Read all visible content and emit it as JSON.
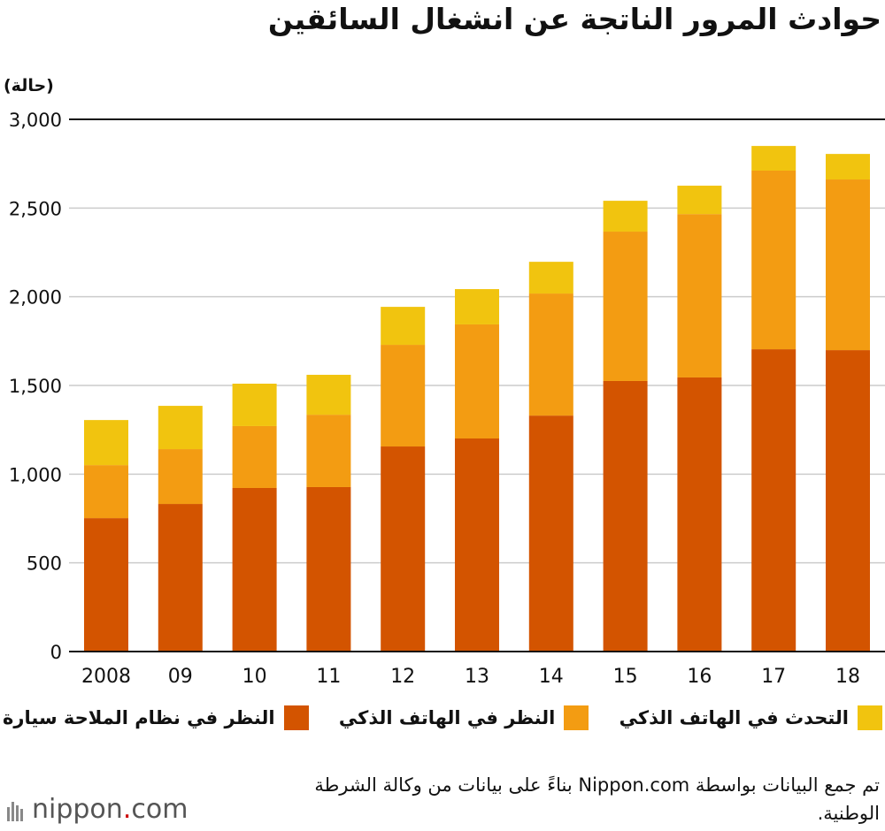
{
  "chart_data": {
    "type": "bar",
    "stacked": true,
    "title": "حوادث المرور الناتجة عن انشغال السائقين",
    "ylabel": "(حالة)",
    "xlabel": "",
    "ylim": [
      0,
      3000
    ],
    "yticks": [
      0,
      500,
      1000,
      1500,
      2000,
      2500,
      3000
    ],
    "ytick_labels": [
      "0",
      "500",
      "1,000",
      "1,500",
      "2,000",
      "2,500",
      "3,000"
    ],
    "categories": [
      "2008",
      "09",
      "10",
      "11",
      "12",
      "13",
      "14",
      "15",
      "16",
      "17",
      "18"
    ],
    "series": [
      {
        "name": "النظر في نظام الملاحة سيارة",
        "color": "#d35400",
        "values": [
          752,
          832,
          922,
          927,
          1156,
          1201,
          1330,
          1525,
          1545,
          1704,
          1699
        ]
      },
      {
        "name": "النظر في الهاتف الذكي",
        "color": "#f39c12",
        "values": [
          299,
          309,
          349,
          408,
          573,
          643,
          688,
          842,
          921,
          1007,
          962
        ]
      },
      {
        "name": "التحدث في الهاتف الذكي",
        "color": "#f1c40f",
        "values": [
          254,
          244,
          239,
          225,
          214,
          199,
          179,
          174,
          160,
          139,
          144
        ]
      }
    ],
    "grid": true,
    "legend": "bottom"
  },
  "source": "تم جمع البيانات بواسطة Nippon.com بناءً على بيانات من وكالة الشرطة الوطنية.",
  "logo": {
    "text": "nippon",
    "dot": ".",
    "suffix": "com"
  }
}
